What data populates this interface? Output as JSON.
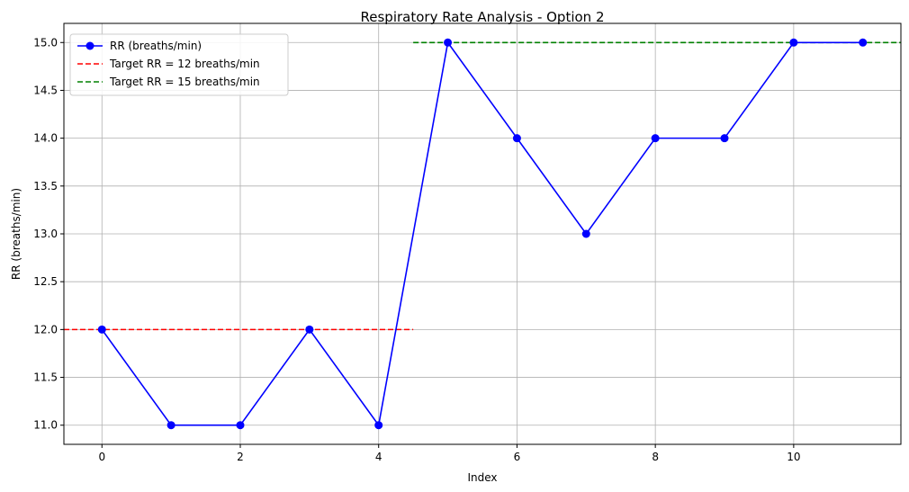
{
  "chart_data": {
    "type": "line",
    "title": "Respiratory Rate Analysis - Option 2",
    "xlabel": "Index",
    "ylabel": "RR (breaths/min)",
    "xlim": [
      -0.55,
      11.55
    ],
    "ylim": [
      10.8,
      15.2
    ],
    "xticks": [
      0,
      2,
      4,
      6,
      8,
      10
    ],
    "xtick_labels": [
      "0",
      "2",
      "4",
      "6",
      "8",
      "10"
    ],
    "yticks": [
      11.0,
      11.5,
      12.0,
      12.5,
      13.0,
      13.5,
      14.0,
      14.5,
      15.0
    ],
    "ytick_labels": [
      "11.0",
      "11.5",
      "12.0",
      "12.5",
      "13.0",
      "13.5",
      "14.0",
      "14.5",
      "15.0"
    ],
    "grid": true,
    "legend_position": "top-left",
    "series": [
      {
        "name": "RR (breaths/min)",
        "color": "#0000ff",
        "style": "solid",
        "marker": "circle",
        "x": [
          0,
          1,
          2,
          3,
          4,
          5,
          6,
          7,
          8,
          9,
          10,
          11
        ],
        "y": [
          12,
          11,
          11,
          12,
          11,
          15,
          14,
          13,
          14,
          14,
          15,
          15
        ]
      }
    ],
    "reference_lines": [
      {
        "name": "Target RR = 12 breaths/min",
        "color": "#ff0000",
        "style": "dashed",
        "y": 12,
        "x_range": [
          -0.55,
          4.5
        ]
      },
      {
        "name": "Target RR = 15 breaths/min",
        "color": "#008000",
        "style": "dashed",
        "y": 15,
        "x_range": [
          4.5,
          11.55
        ]
      }
    ]
  }
}
